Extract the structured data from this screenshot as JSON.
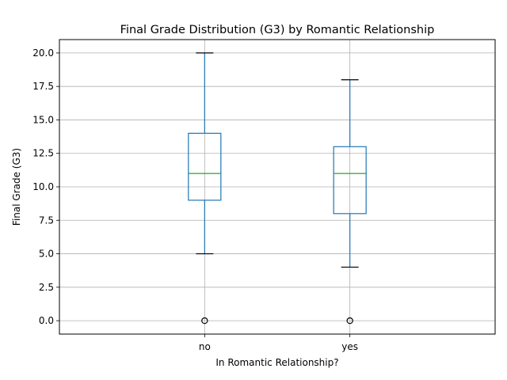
{
  "chart_data": {
    "type": "box",
    "title": "Final Grade Distribution (G3) by Romantic Relationship",
    "xlabel": "In Romantic Relationship?",
    "ylabel": "Final Grade (G3)",
    "categories": [
      "no",
      "yes"
    ],
    "boxes": [
      {
        "category": "no",
        "whisker_low": 5,
        "q1": 9,
        "median": 11,
        "q3": 14,
        "whisker_high": 20,
        "outliers": [
          0
        ]
      },
      {
        "category": "yes",
        "whisker_low": 4,
        "q1": 8,
        "median": 11,
        "q3": 13,
        "whisker_high": 18,
        "outliers": [
          0
        ]
      }
    ],
    "ylim": [
      -1,
      21
    ],
    "yticks": [
      0.0,
      2.5,
      5.0,
      7.5,
      10.0,
      12.5,
      15.0,
      17.5,
      20.0
    ],
    "ytick_labels": [
      "0.0",
      "2.5",
      "5.0",
      "7.5",
      "10.0",
      "12.5",
      "15.0",
      "17.5",
      "20.0"
    ],
    "grid": true,
    "colors": {
      "box": "#1f77b4",
      "median": "#2ca02c",
      "grid": "#b0b0b0",
      "whisker_cap": "#000000"
    }
  }
}
